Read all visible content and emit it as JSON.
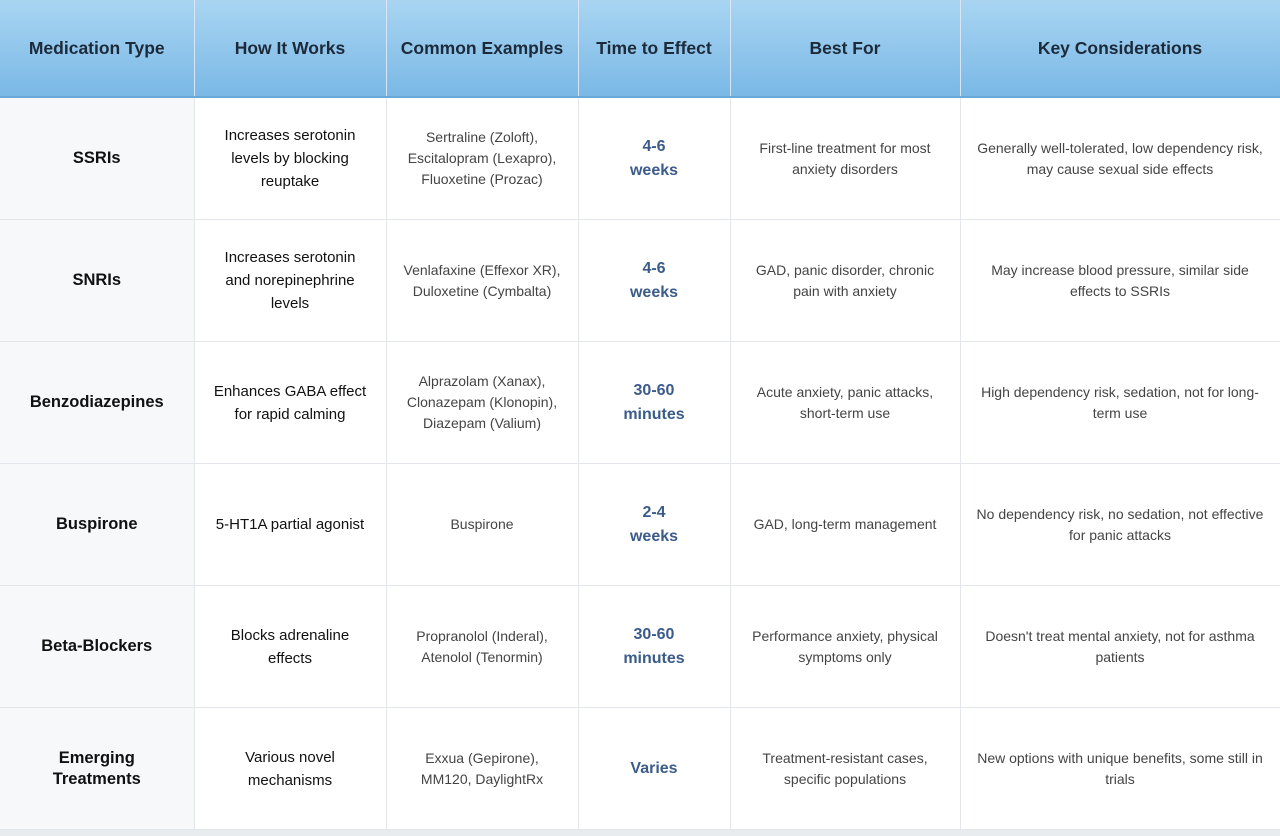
{
  "table": {
    "headers": [
      "Medication Type",
      "How It Works",
      "Common Examples",
      "Time to Effect",
      "Best For",
      "Key Considerations"
    ],
    "rows": [
      [
        "SSRIs",
        "Increases serotonin levels by blocking reuptake",
        "Sertraline (Zoloft), Escitalopram (Lexapro), Fluoxetine (Prozac)",
        "4-6 weeks",
        "First-line treatment for most anxiety disorders",
        "Generally well-tolerated, low dependency risk, may cause sexual side effects"
      ],
      [
        "SNRIs",
        "Increases serotonin and norepinephrine levels",
        "Venlafaxine (Effexor XR), Duloxetine (Cymbalta)",
        "4-6 weeks",
        "GAD, panic disorder, chronic pain with anxiety",
        "May increase blood pressure, similar side effects to SSRIs"
      ],
      [
        "Benzodiazepines",
        "Enhances GABA effect for rapid calming",
        "Alprazolam (Xanax), Clonazepam (Klonopin), Diazepam (Valium)",
        "30-60 minutes",
        "Acute anxiety, panic attacks, short-term use",
        "High dependency risk, sedation, not for long-term use"
      ],
      [
        "Buspirone",
        "5-HT1A partial agonist",
        "Buspirone",
        "2-4 weeks",
        "GAD, long-term management",
        "No dependency risk, no sedation, not effective for panic attacks"
      ],
      [
        "Beta-Blockers",
        "Blocks adrenaline effects",
        "Propranolol (Inderal), Atenolol (Tenormin)",
        "30-60 minutes",
        "Performance anxiety, physical symptoms only",
        "Doesn't treat mental anxiety, not for asthma patients"
      ],
      [
        "Emerging Treatments",
        "Various novel mechanisms",
        "Exxua (Gepirone), MM120, DaylightRx",
        "Varies",
        "Treatment-resistant cases, specific populations",
        "New options with unique benefits, some still in trials"
      ]
    ]
  }
}
